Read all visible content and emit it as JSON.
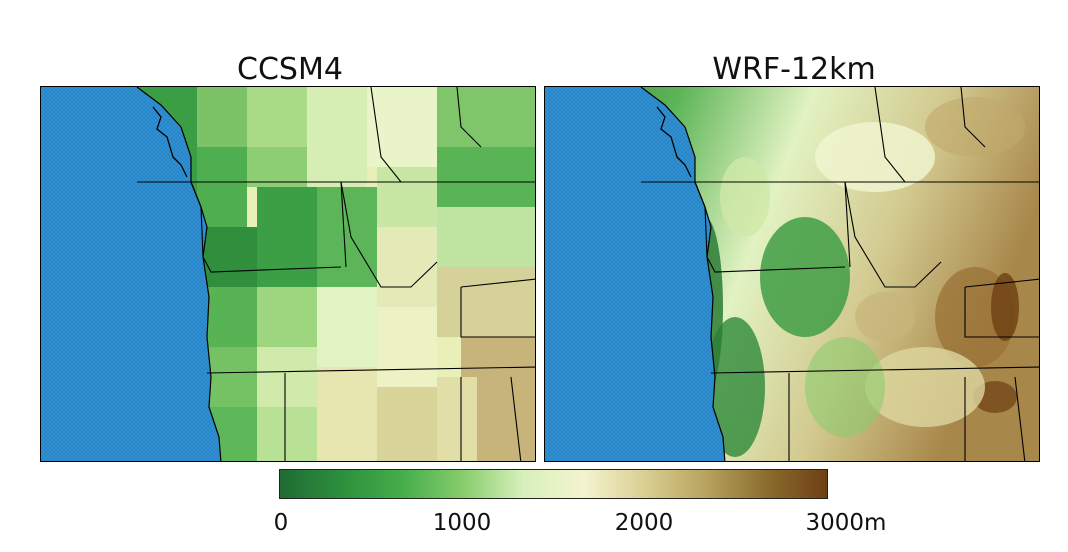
{
  "panels": [
    {
      "title": "CCSM4"
    },
    {
      "title": "WRF-12km"
    }
  ],
  "colorbar": {
    "ticks": [
      "0",
      "1000",
      "2000",
      "3000m"
    ],
    "range": [
      0,
      3000
    ],
    "unit": "m",
    "colors": [
      "#1f6b34",
      "#2d8f3c",
      "#45ad4a",
      "#86cc6c",
      "#d8f0bb",
      "#f4f3cf",
      "#d9cf92",
      "#b8a35f",
      "#8c6d2f",
      "#6e3f12"
    ]
  },
  "colors": {
    "ocean": "#2f8fd1",
    "borders": "#000000"
  }
}
